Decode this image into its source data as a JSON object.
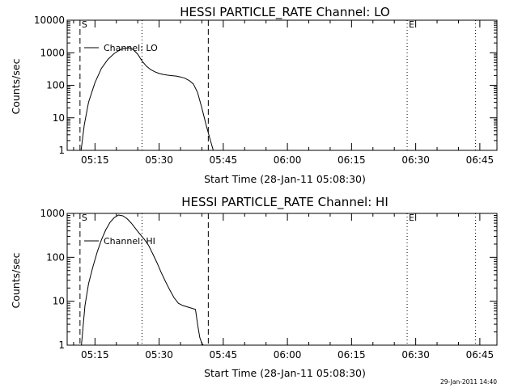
{
  "footer": {
    "timestamp": "29-Jan-2011 14:40"
  },
  "chart_data": [
    {
      "type": "line",
      "title": "HESSI PARTICLE_RATE Channel: LO",
      "xlabel": "Start Time (28-Jan-11 05:08:30)",
      "ylabel": "Counts/sec",
      "yscale": "log",
      "ylim": [
        1,
        10000
      ],
      "xlim": [
        "05:08:30",
        "06:49:00"
      ],
      "x_ticks": [
        "05:15",
        "05:30",
        "05:45",
        "06:00",
        "06:15",
        "06:30",
        "06:45"
      ],
      "y_ticks": [
        "1",
        "10",
        "100",
        "1000",
        "10000"
      ],
      "legend": {
        "label": "Channel: LO",
        "placement": "top-left"
      },
      "markers": [
        {
          "label": "S",
          "time": "05:11:30",
          "style": "dashed"
        },
        {
          "label": "",
          "time": "05:41:30",
          "style": "dashed"
        },
        {
          "label": "",
          "time": "05:26:00",
          "style": "dotted"
        },
        {
          "label": "E",
          "time": "06:28:00",
          "style": "dotted"
        },
        {
          "label": "",
          "time": "06:44:00",
          "style": "dotted"
        }
      ],
      "series": [
        {
          "name": "Channel: LO",
          "x": [
            "05:11:45",
            "05:12:30",
            "05:13:30",
            "05:15:00",
            "05:16:30",
            "05:18:00",
            "05:19:30",
            "05:21:00",
            "05:22:00",
            "05:23:00",
            "05:24:00",
            "05:25:00",
            "05:26:00",
            "05:27:00",
            "05:28:00",
            "05:29:00",
            "05:30:00",
            "05:31:00",
            "05:32:00",
            "05:33:00",
            "05:34:00",
            "05:35:00",
            "05:36:00",
            "05:37:00",
            "05:38:00",
            "05:39:00",
            "05:40:00",
            "05:41:00",
            "05:42:00",
            "05:42:40"
          ],
          "values": [
            1,
            6,
            30,
            120,
            330,
            620,
            950,
            1250,
            1380,
            1420,
            1230,
            900,
            560,
            390,
            305,
            260,
            230,
            215,
            205,
            198,
            192,
            180,
            165,
            140,
            110,
            60,
            20,
            6,
            2,
            1
          ]
        }
      ]
    },
    {
      "type": "line",
      "title": "HESSI PARTICLE_RATE Channel: HI",
      "xlabel": "Start Time (28-Jan-11 05:08:30)",
      "ylabel": "Counts/sec",
      "yscale": "log",
      "ylim": [
        1,
        1000
      ],
      "xlim": [
        "05:08:30",
        "06:49:00"
      ],
      "x_ticks": [
        "05:15",
        "05:30",
        "05:45",
        "06:00",
        "06:15",
        "06:30",
        "06:45"
      ],
      "y_ticks": [
        "1",
        "10",
        "100",
        "1000"
      ],
      "legend": {
        "label": "Channel: HI",
        "placement": "top-left"
      },
      "markers": [
        {
          "label": "S",
          "time": "05:11:30",
          "style": "dashed"
        },
        {
          "label": "",
          "time": "05:41:30",
          "style": "dashed"
        },
        {
          "label": "",
          "time": "05:26:00",
          "style": "dotted"
        },
        {
          "label": "E",
          "time": "06:28:00",
          "style": "dotted"
        },
        {
          "label": "",
          "time": "06:44:00",
          "style": "dotted"
        }
      ],
      "series": [
        {
          "name": "Channel: HI",
          "x": [
            "05:11:50",
            "05:12:40",
            "05:13:30",
            "05:14:30",
            "05:15:30",
            "05:16:30",
            "05:17:30",
            "05:18:30",
            "05:19:30",
            "05:20:30",
            "05:21:30",
            "05:22:30",
            "05:23:30",
            "05:24:30",
            "05:25:30",
            "05:26:30",
            "05:27:30",
            "05:28:30",
            "05:29:30",
            "05:30:30",
            "05:31:30",
            "05:32:30",
            "05:33:30",
            "05:34:30",
            "05:35:30",
            "05:36:30",
            "05:37:30",
            "05:38:30",
            "05:39:00",
            "05:39:30",
            "05:40:00",
            "05:40:20"
          ],
          "values": [
            1,
            8,
            25,
            60,
            130,
            250,
            420,
            620,
            800,
            920,
            880,
            760,
            600,
            450,
            340,
            260,
            190,
            120,
            75,
            45,
            28,
            18,
            12,
            9,
            8,
            7.5,
            7,
            6.5,
            3,
            1.5,
            1.1,
            1
          ]
        }
      ]
    }
  ]
}
